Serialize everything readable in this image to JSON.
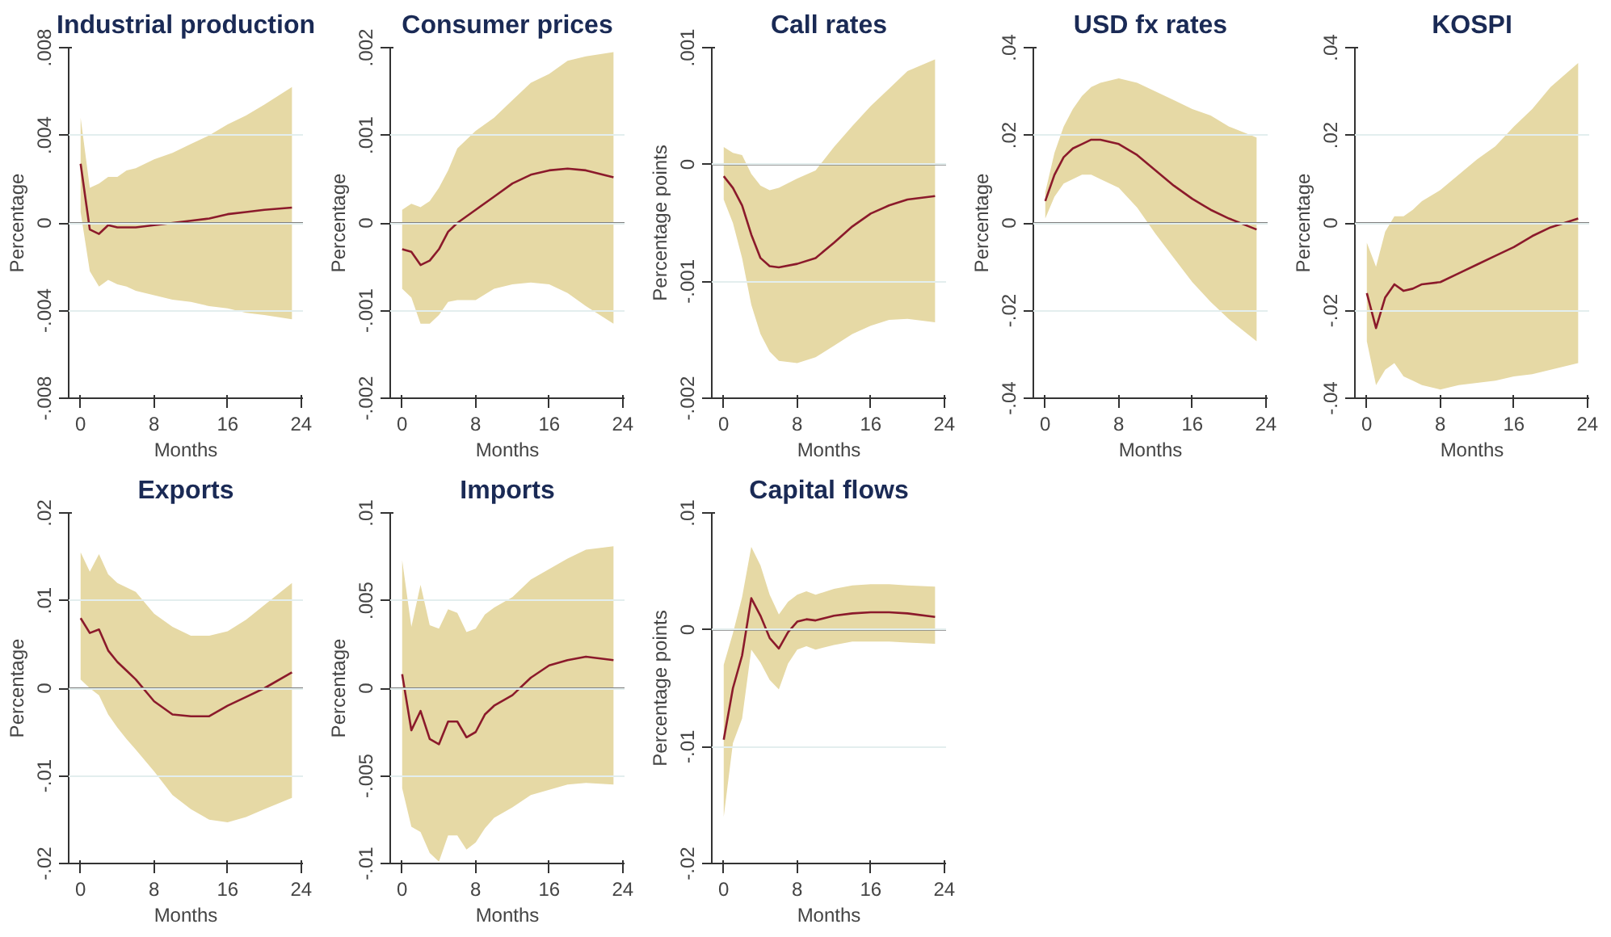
{
  "chart_data": [
    {
      "type": "line",
      "title": "Industrial production",
      "xlabel": "Months",
      "ylabel": "Percentage",
      "grid": "y",
      "xlim": [
        -1.3,
        24.2
      ],
      "xticks": [
        0,
        8,
        16,
        24
      ],
      "ylim": [
        -0.008,
        0.008
      ],
      "yticks": [
        {
          "value": -0.008,
          "label": "-.008"
        },
        {
          "value": -0.004,
          "label": "-.004"
        },
        {
          "value": 0,
          "label": "0"
        },
        {
          "value": 0.004,
          "label": ".004"
        },
        {
          "value": 0.008,
          "label": ".008"
        }
      ],
      "ref_lines": [
        {
          "axis": "y",
          "value": 0,
          "color": "#808080"
        }
      ],
      "x": [
        0,
        1,
        2,
        3,
        4,
        5,
        6,
        8,
        10,
        12,
        14,
        16,
        18,
        20,
        23
      ],
      "series": [
        {
          "color": "#8b1a2b",
          "values": [
            0.0027,
            -0.0003,
            -0.0005,
            -0.0001,
            -0.0002,
            -0.0002,
            -0.0002,
            -0.0001,
            0.0,
            0.0001,
            0.0002,
            0.0004,
            0.0005,
            0.0006,
            0.0007
          ],
          "upper": [
            0.0048,
            0.0016,
            0.0018,
            0.0021,
            0.0021,
            0.0024,
            0.0025,
            0.0029,
            0.0032,
            0.0036,
            0.004,
            0.0045,
            0.0049,
            0.0054,
            0.0062
          ],
          "lower": [
            0.0005,
            -0.0022,
            -0.0029,
            -0.0026,
            -0.0028,
            -0.0029,
            -0.0031,
            -0.0033,
            -0.0035,
            -0.0036,
            -0.0038,
            -0.0039,
            -0.0041,
            -0.0042,
            -0.0044
          ]
        }
      ]
    },
    {
      "type": "line",
      "title": "Consumer prices",
      "xlabel": "Months",
      "ylabel": "Percentage",
      "grid": "y",
      "xlim": [
        -1.3,
        24.2
      ],
      "xticks": [
        0,
        8,
        16,
        24
      ],
      "ylim": [
        -0.002,
        0.002
      ],
      "yticks": [
        {
          "value": -0.002,
          "label": "-.002"
        },
        {
          "value": -0.001,
          "label": "-.001"
        },
        {
          "value": 0,
          "label": "0"
        },
        {
          "value": 0.001,
          "label": ".001"
        },
        {
          "value": 0.002,
          "label": ".002"
        }
      ],
      "ref_lines": [
        {
          "axis": "y",
          "value": 0,
          "color": "#808080"
        }
      ],
      "x": [
        0,
        1,
        2,
        3,
        4,
        5,
        6,
        8,
        10,
        12,
        14,
        16,
        18,
        20,
        23
      ],
      "series": [
        {
          "color": "#8b1a2b",
          "values": [
            -0.0003,
            -0.00033,
            -0.00048,
            -0.00043,
            -0.0003,
            -0.0001,
            0.0,
            0.00015,
            0.0003,
            0.00045,
            0.00055,
            0.0006,
            0.00062,
            0.0006,
            0.00052
          ],
          "upper": [
            0.00015,
            0.00022,
            0.00018,
            0.00025,
            0.0004,
            0.0006,
            0.00085,
            0.00105,
            0.0012,
            0.0014,
            0.0016,
            0.0017,
            0.00185,
            0.0019,
            0.00195
          ],
          "lower": [
            -0.00075,
            -0.00085,
            -0.00115,
            -0.00115,
            -0.00105,
            -0.0009,
            -0.00088,
            -0.00088,
            -0.00075,
            -0.0007,
            -0.00068,
            -0.0007,
            -0.0008,
            -0.00095,
            -0.00115
          ]
        }
      ]
    },
    {
      "type": "line",
      "title": "Call rates",
      "xlabel": "Months",
      "ylabel": "Percentage points",
      "grid": "y",
      "xlim": [
        -1.3,
        24.2
      ],
      "xticks": [
        0,
        8,
        16,
        24
      ],
      "ylim": [
        -0.002,
        0.001
      ],
      "yticks": [
        {
          "value": -0.002,
          "label": "-.002"
        },
        {
          "value": -0.001,
          "label": "-.001"
        },
        {
          "value": 0,
          "label": "0"
        },
        {
          "value": 0.001,
          "label": ".001"
        }
      ],
      "ref_lines": [
        {
          "axis": "y",
          "value": 0,
          "color": "#808080"
        }
      ],
      "x": [
        0,
        1,
        2,
        3,
        4,
        5,
        6,
        8,
        10,
        12,
        14,
        16,
        18,
        20,
        23
      ],
      "series": [
        {
          "color": "#8b1a2b",
          "values": [
            -0.0001,
            -0.0002,
            -0.00035,
            -0.0006,
            -0.0008,
            -0.00087,
            -0.00088,
            -0.00085,
            -0.0008,
            -0.00067,
            -0.00053,
            -0.00042,
            -0.00035,
            -0.0003,
            -0.00027
          ],
          "upper": [
            0.00015,
            0.0001,
            8e-05,
            -8e-05,
            -0.00018,
            -0.00022,
            -0.0002,
            -0.00012,
            -5e-05,
            0.00015,
            0.00033,
            0.0005,
            0.00065,
            0.0008,
            0.0009
          ],
          "lower": [
            -0.0003,
            -0.0005,
            -0.0008,
            -0.0012,
            -0.00145,
            -0.0016,
            -0.00168,
            -0.0017,
            -0.00165,
            -0.00155,
            -0.00145,
            -0.00138,
            -0.00133,
            -0.00132,
            -0.00135
          ]
        }
      ]
    },
    {
      "type": "line",
      "title": "USD fx rates",
      "xlabel": "Months",
      "ylabel": "Percentage",
      "grid": "y",
      "xlim": [
        -1.3,
        24.2
      ],
      "xticks": [
        0,
        8,
        16,
        24
      ],
      "ylim": [
        -0.04,
        0.04
      ],
      "yticks": [
        {
          "value": -0.04,
          "label": "-.04"
        },
        {
          "value": -0.02,
          "label": "-.02"
        },
        {
          "value": 0,
          "label": "0"
        },
        {
          "value": 0.02,
          "label": ".02"
        },
        {
          "value": 0.04,
          "label": ".04"
        }
      ],
      "ref_lines": [
        {
          "axis": "y",
          "value": 0,
          "color": "#808080"
        }
      ],
      "x": [
        0,
        1,
        2,
        3,
        4,
        5,
        6,
        8,
        10,
        12,
        14,
        16,
        18,
        20,
        23
      ],
      "series": [
        {
          "color": "#8b1a2b",
          "values": [
            0.005,
            0.011,
            0.015,
            0.017,
            0.018,
            0.019,
            0.019,
            0.018,
            0.0155,
            0.012,
            0.0085,
            0.0055,
            0.003,
            0.001,
            -0.0015
          ],
          "upper": [
            0.007,
            0.016,
            0.022,
            0.026,
            0.029,
            0.031,
            0.032,
            0.033,
            0.032,
            0.03,
            0.028,
            0.026,
            0.0245,
            0.022,
            0.0195
          ],
          "lower": [
            0.001,
            0.006,
            0.009,
            0.01,
            0.011,
            0.011,
            0.01,
            0.008,
            0.0035,
            -0.0025,
            -0.008,
            -0.0135,
            -0.018,
            -0.022,
            -0.027
          ]
        }
      ]
    },
    {
      "type": "line",
      "title": "KOSPI",
      "xlabel": "Months",
      "ylabel": "Percentage",
      "grid": "y",
      "xlim": [
        -1.3,
        24.2
      ],
      "xticks": [
        0,
        8,
        16,
        24
      ],
      "ylim": [
        -0.04,
        0.04
      ],
      "yticks": [
        {
          "value": -0.04,
          "label": "-.04"
        },
        {
          "value": -0.02,
          "label": "-.02"
        },
        {
          "value": 0,
          "label": "0"
        },
        {
          "value": 0.02,
          "label": ".02"
        },
        {
          "value": 0.04,
          "label": ".04"
        }
      ],
      "ref_lines": [
        {
          "axis": "y",
          "value": 0,
          "color": "#808080"
        }
      ],
      "x": [
        0,
        1,
        2,
        3,
        4,
        5,
        6,
        8,
        10,
        12,
        14,
        16,
        18,
        20,
        23
      ],
      "series": [
        {
          "color": "#8b1a2b",
          "values": [
            -0.016,
            -0.024,
            -0.017,
            -0.014,
            -0.0155,
            -0.015,
            -0.014,
            -0.0135,
            -0.0115,
            -0.0095,
            -0.0075,
            -0.0055,
            -0.003,
            -0.001,
            0.001
          ],
          "upper": [
            -0.0045,
            -0.01,
            -0.002,
            0.0015,
            0.0015,
            0.003,
            0.005,
            0.0075,
            0.011,
            0.0145,
            0.0175,
            0.022,
            0.026,
            0.031,
            0.0365
          ],
          "lower": [
            -0.027,
            -0.037,
            -0.0335,
            -0.032,
            -0.035,
            -0.036,
            -0.037,
            -0.038,
            -0.037,
            -0.0365,
            -0.036,
            -0.035,
            -0.0345,
            -0.0335,
            -0.032
          ]
        }
      ]
    },
    {
      "type": "line",
      "title": "Exports",
      "xlabel": "Months",
      "ylabel": "Percentage",
      "grid": "y",
      "xlim": [
        -1.3,
        24.2
      ],
      "xticks": [
        0,
        8,
        16,
        24
      ],
      "ylim": [
        -0.02,
        0.02
      ],
      "yticks": [
        {
          "value": -0.02,
          "label": "-.02"
        },
        {
          "value": -0.01,
          "label": "-.01"
        },
        {
          "value": 0,
          "label": "0"
        },
        {
          "value": 0.01,
          "label": ".01"
        },
        {
          "value": 0.02,
          "label": ".02"
        }
      ],
      "ref_lines": [
        {
          "axis": "y",
          "value": 0,
          "color": "#808080"
        }
      ],
      "x": [
        0,
        1,
        2,
        3,
        4,
        5,
        6,
        8,
        10,
        12,
        14,
        16,
        18,
        20,
        23
      ],
      "series": [
        {
          "color": "#8b1a2b",
          "values": [
            0.008,
            0.0063,
            0.0067,
            0.0043,
            0.003,
            0.002,
            0.001,
            -0.0015,
            -0.003,
            -0.0032,
            -0.0032,
            -0.002,
            -0.001,
            0.0,
            0.0018
          ],
          "upper": [
            0.0155,
            0.0133,
            0.0153,
            0.013,
            0.012,
            0.0115,
            0.011,
            0.0085,
            0.007,
            0.006,
            0.006,
            0.0065,
            0.0078,
            0.0095,
            0.012
          ],
          "lower": [
            0.001,
            0.0,
            -0.0008,
            -0.003,
            -0.0045,
            -0.0058,
            -0.007,
            -0.0095,
            -0.0122,
            -0.0138,
            -0.015,
            -0.0153,
            -0.0147,
            -0.0138,
            -0.0125
          ]
        }
      ]
    },
    {
      "type": "line",
      "title": "Imports",
      "xlabel": "Months",
      "ylabel": "Percentage",
      "grid": "y",
      "xlim": [
        -1.3,
        24.2
      ],
      "xticks": [
        0,
        8,
        16,
        24
      ],
      "ylim": [
        -0.01,
        0.01
      ],
      "yticks": [
        {
          "value": -0.01,
          "label": "-.01"
        },
        {
          "value": -0.005,
          "label": "-.005"
        },
        {
          "value": 0,
          "label": "0"
        },
        {
          "value": 0.005,
          "label": ".005"
        },
        {
          "value": 0.01,
          "label": ".01"
        }
      ],
      "ref_lines": [
        {
          "axis": "y",
          "value": 0,
          "color": "#808080"
        }
      ],
      "x": [
        0,
        1,
        2,
        3,
        4,
        5,
        6,
        7,
        8,
        9,
        10,
        12,
        14,
        16,
        18,
        20,
        23
      ],
      "series": [
        {
          "color": "#8b1a2b",
          "values": [
            0.0008,
            -0.0024,
            -0.0013,
            -0.0029,
            -0.0032,
            -0.0019,
            -0.0019,
            -0.0028,
            -0.0025,
            -0.0015,
            -0.001,
            -0.0004,
            0.0006,
            0.0013,
            0.0016,
            0.0018,
            0.0016
          ],
          "upper": [
            0.0073,
            0.0035,
            0.0059,
            0.0036,
            0.0034,
            0.0045,
            0.0043,
            0.0032,
            0.0034,
            0.0042,
            0.0046,
            0.0052,
            0.0062,
            0.0068,
            0.0074,
            0.0079,
            0.0081
          ],
          "lower": [
            -0.0057,
            -0.0079,
            -0.0082,
            -0.0094,
            -0.0099,
            -0.0084,
            -0.0084,
            -0.0092,
            -0.0088,
            -0.008,
            -0.0074,
            -0.0068,
            -0.0061,
            -0.0058,
            -0.0055,
            -0.0054,
            -0.0055
          ]
        }
      ]
    },
    {
      "type": "line",
      "title": "Capital flows",
      "xlabel": "Months",
      "ylabel": "Percentage points",
      "grid": "y",
      "xlim": [
        -1.3,
        24.2
      ],
      "xticks": [
        0,
        8,
        16,
        24
      ],
      "ylim": [
        -0.02,
        0.01
      ],
      "yticks": [
        {
          "value": -0.02,
          "label": "-.02"
        },
        {
          "value": -0.01,
          "label": "-.01"
        },
        {
          "value": 0,
          "label": "0"
        },
        {
          "value": 0.01,
          "label": ".01"
        }
      ],
      "ref_lines": [
        {
          "axis": "y",
          "value": 0,
          "color": "#808080"
        }
      ],
      "x": [
        0,
        1,
        2,
        3,
        4,
        5,
        6,
        7,
        8,
        9,
        10,
        12,
        14,
        16,
        18,
        20,
        23
      ],
      "series": [
        {
          "color": "#8b1a2b",
          "values": [
            -0.0094,
            -0.005,
            -0.0022,
            0.0027,
            0.0012,
            -0.0007,
            -0.0016,
            -0.0002,
            0.0007,
            0.0009,
            0.0008,
            0.0012,
            0.0014,
            0.0015,
            0.0015,
            0.0014,
            0.0011
          ],
          "upper": [
            -0.003,
            -0.0003,
            0.0028,
            0.0071,
            0.0055,
            0.003,
            0.0013,
            0.0024,
            0.003,
            0.0033,
            0.003,
            0.0035,
            0.0038,
            0.0039,
            0.0039,
            0.0038,
            0.0037
          ],
          "lower": [
            -0.016,
            -0.0097,
            -0.0076,
            -0.0017,
            -0.0028,
            -0.0043,
            -0.0051,
            -0.0029,
            -0.0017,
            -0.0014,
            -0.0017,
            -0.0013,
            -0.001,
            -0.001,
            -0.001,
            -0.0011,
            -0.0012
          ]
        }
      ]
    }
  ]
}
